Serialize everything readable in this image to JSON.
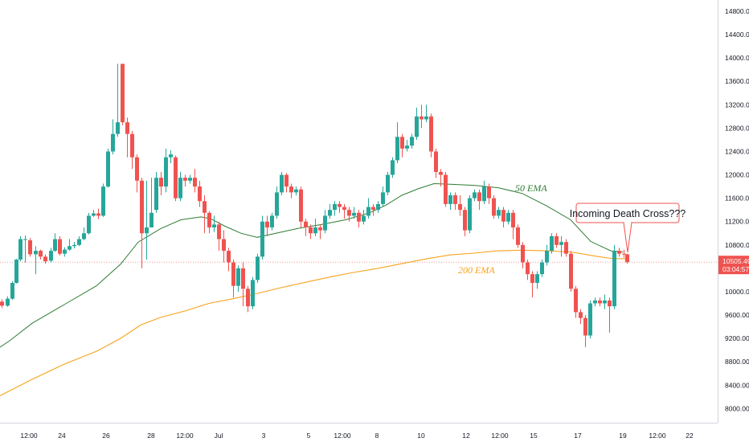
{
  "chart_data": {
    "type": "candlestick",
    "colors": {
      "up": "#26a69a",
      "down": "#ef5350",
      "ema50": "#2e7d32",
      "ema200": "#f7a21b",
      "price_line": "#ef5350",
      "callout_border": "#ef5350"
    },
    "y_axis": {
      "range": [
        7600,
        15000
      ],
      "ticks": [
        "14800.00",
        "14400.00",
        "14000.00",
        "13600.00",
        "13200.00",
        "12800.00",
        "12400.00",
        "12000.00",
        "11600.00",
        "11200.00",
        "10800.00",
        "10000.00",
        "9600.00",
        "9200.00",
        "8800.00",
        "8400.00",
        "8000.00"
      ]
    },
    "x_axis": {
      "ticks": [
        "12:00",
        "24",
        "26",
        "28",
        "12:00",
        "Jul",
        "3",
        "5",
        "12:00",
        "8",
        "10",
        "12",
        "12:00",
        "15",
        "17",
        "19",
        "12:00",
        "22"
      ]
    },
    "current_price": {
      "price": 10505.49,
      "label": "10505.49",
      "countdown": "03:04:57"
    },
    "annotations": {
      "ema50_label": "50 EMA",
      "ema200_label": "200 EMA",
      "callout": "Incoming Death Cross???"
    },
    "ema50": [
      [
        0,
        9050
      ],
      [
        12,
        9160
      ],
      [
        40,
        9460
      ],
      [
        80,
        9780
      ],
      [
        120,
        10100
      ],
      [
        150,
        10470
      ],
      [
        172,
        10850
      ],
      [
        200,
        11080
      ],
      [
        225,
        11230
      ],
      [
        250,
        11280
      ],
      [
        262,
        11250
      ],
      [
        280,
        11120
      ],
      [
        300,
        11000
      ],
      [
        320,
        10930
      ],
      [
        340,
        10990
      ],
      [
        370,
        11080
      ],
      [
        400,
        11150
      ],
      [
        430,
        11230
      ],
      [
        460,
        11350
      ],
      [
        480,
        11480
      ],
      [
        500,
        11650
      ],
      [
        520,
        11760
      ],
      [
        540,
        11850
      ],
      [
        560,
        11840
      ],
      [
        590,
        11820
      ],
      [
        620,
        11780
      ],
      [
        650,
        11680
      ],
      [
        680,
        11470
      ],
      [
        710,
        11230
      ],
      [
        735,
        10860
      ],
      [
        760,
        10700
      ],
      [
        775,
        10680
      ]
    ],
    "ema200": [
      [
        0,
        8220
      ],
      [
        40,
        8500
      ],
      [
        80,
        8760
      ],
      [
        120,
        8980
      ],
      [
        150,
        9200
      ],
      [
        175,
        9430
      ],
      [
        200,
        9560
      ],
      [
        230,
        9670
      ],
      [
        260,
        9800
      ],
      [
        290,
        9880
      ],
      [
        320,
        9970
      ],
      [
        350,
        10070
      ],
      [
        380,
        10160
      ],
      [
        410,
        10250
      ],
      [
        440,
        10330
      ],
      [
        470,
        10400
      ],
      [
        500,
        10480
      ],
      [
        530,
        10560
      ],
      [
        560,
        10630
      ],
      [
        590,
        10660
      ],
      [
        620,
        10700
      ],
      [
        650,
        10710
      ],
      [
        680,
        10700
      ],
      [
        710,
        10680
      ],
      [
        740,
        10610
      ],
      [
        760,
        10570
      ],
      [
        780,
        10560
      ]
    ],
    "candles": [
      [
        2,
        9830,
        9760,
        9870,
        9720
      ],
      [
        9,
        9760,
        9880,
        9920,
        9740
      ],
      [
        15,
        9880,
        10150,
        10180,
        9860
      ],
      [
        20,
        10150,
        10550,
        10560,
        10140
      ],
      [
        25,
        10550,
        10900,
        10950,
        10520
      ],
      [
        31,
        10900,
        10900,
        10960,
        10500
      ],
      [
        37,
        10880,
        10640,
        10920,
        10600
      ],
      [
        44,
        10640,
        10700,
        10780,
        10300
      ],
      [
        50,
        10700,
        10600,
        10720,
        10550
      ],
      [
        56,
        10600,
        10520,
        10640,
        10480
      ],
      [
        63,
        10530,
        10700,
        10750,
        10500
      ],
      [
        68,
        10700,
        10900,
        11000,
        10680
      ],
      [
        74,
        10900,
        10650,
        10950,
        10620
      ],
      [
        80,
        10650,
        10720,
        10760,
        10600
      ],
      [
        86,
        10720,
        10780,
        10900,
        10700
      ],
      [
        92,
        10780,
        10800,
        10850,
        10740
      ],
      [
        98,
        10800,
        10900,
        10950,
        10780
      ],
      [
        104,
        10900,
        11000,
        11100,
        10880
      ],
      [
        110,
        11000,
        11300,
        11350,
        10980
      ],
      [
        116,
        11300,
        11340,
        11400,
        11280
      ],
      [
        122,
        11340,
        11300,
        11420,
        11240
      ],
      [
        128,
        11300,
        11800,
        11850,
        11280
      ],
      [
        134,
        11800,
        12400,
        12450,
        11780
      ],
      [
        140,
        12400,
        12700,
        12950,
        12350
      ],
      [
        146,
        12700,
        12900,
        13900,
        12650
      ],
      [
        152,
        13900,
        12900,
        13900,
        12850
      ],
      [
        158,
        12900,
        12700,
        12980,
        12300
      ],
      [
        164,
        12700,
        12300,
        12750,
        12100
      ],
      [
        170,
        12300,
        11900,
        12350,
        11700
      ],
      [
        176,
        11900,
        11000,
        11950,
        10400
      ],
      [
        182,
        11000,
        11100,
        11900,
        10550
      ],
      [
        188,
        11100,
        11350,
        11950,
        11100
      ],
      [
        194,
        11400,
        11950,
        12050,
        11350
      ],
      [
        200,
        11950,
        11800,
        12050,
        11650
      ],
      [
        206,
        11800,
        12300,
        12450,
        11700
      ],
      [
        212,
        12300,
        12350,
        12420,
        12200
      ],
      [
        218,
        12300,
        11600,
        12330,
        11550
      ],
      [
        224,
        11600,
        11950,
        12050,
        11550
      ],
      [
        230,
        11950,
        11900,
        12000,
        11800
      ],
      [
        236,
        11900,
        11950,
        12000,
        11850
      ],
      [
        242,
        11950,
        11800,
        12100,
        11700
      ],
      [
        248,
        11800,
        11550,
        11900,
        11450
      ],
      [
        254,
        11550,
        11350,
        11650,
        11000
      ],
      [
        260,
        11350,
        11100,
        11380,
        11000
      ],
      [
        266,
        11100,
        11150,
        11300,
        11020
      ],
      [
        272,
        11150,
        10900,
        11200,
        10700
      ],
      [
        278,
        10900,
        10700,
        11050,
        10500
      ],
      [
        284,
        10700,
        10500,
        10750,
        10350
      ],
      [
        290,
        10500,
        10100,
        10550,
        9900
      ],
      [
        296,
        10100,
        10400,
        10450,
        10000
      ],
      [
        302,
        10400,
        10050,
        10500,
        9750
      ],
      [
        308,
        10050,
        9750,
        10100,
        9650
      ],
      [
        314,
        9750,
        10200,
        10250,
        9700
      ],
      [
        320,
        10200,
        10600,
        10650,
        10150
      ],
      [
        326,
        10600,
        11200,
        11300,
        10550
      ],
      [
        332,
        11200,
        11100,
        11300,
        10950
      ],
      [
        338,
        11100,
        11300,
        11350,
        11050
      ],
      [
        344,
        11300,
        11700,
        11800,
        11250
      ],
      [
        350,
        11700,
        12000,
        12050,
        11650
      ],
      [
        356,
        12000,
        11800,
        12030,
        11700
      ],
      [
        362,
        11800,
        11700,
        11850,
        11600
      ],
      [
        368,
        11700,
        11750,
        11800,
        11650
      ],
      [
        374,
        11750,
        11200,
        11800,
        11100
      ],
      [
        380,
        11200,
        11100,
        11250,
        10950
      ],
      [
        386,
        11100,
        11000,
        11150,
        10900
      ],
      [
        392,
        11000,
        11100,
        11250,
        10950
      ],
      [
        398,
        11100,
        11050,
        11150,
        10900
      ],
      [
        404,
        11050,
        11300,
        11400,
        11000
      ],
      [
        410,
        11300,
        11400,
        11500,
        11250
      ],
      [
        416,
        11400,
        11500,
        11550,
        11300
      ],
      [
        422,
        11500,
        11450,
        11550,
        11350
      ],
      [
        428,
        11450,
        11400,
        11500,
        11250
      ],
      [
        434,
        11400,
        11300,
        11450,
        11200
      ],
      [
        440,
        11300,
        11350,
        11450,
        11250
      ],
      [
        446,
        11350,
        11200,
        11400,
        11100
      ],
      [
        452,
        11200,
        11300,
        11400,
        11150
      ],
      [
        458,
        11300,
        11450,
        11600,
        11250
      ],
      [
        464,
        11450,
        11400,
        11500,
        11300
      ],
      [
        470,
        11400,
        11500,
        11550,
        11350
      ],
      [
        476,
        11500,
        11700,
        11800,
        11450
      ],
      [
        482,
        11700,
        12000,
        12050,
        11650
      ],
      [
        488,
        12000,
        12250,
        12300,
        11950
      ],
      [
        494,
        12250,
        12650,
        12900,
        12200
      ],
      [
        500,
        12650,
        12450,
        12700,
        12300
      ],
      [
        506,
        12450,
        12500,
        12600,
        12400
      ],
      [
        512,
        12500,
        12650,
        12700,
        12450
      ],
      [
        518,
        12650,
        13000,
        13150,
        12600
      ],
      [
        524,
        13000,
        12950,
        13200,
        12800
      ],
      [
        530,
        12950,
        13000,
        13200,
        12900
      ],
      [
        536,
        13000,
        12400,
        13050,
        12300
      ],
      [
        542,
        12400,
        12050,
        12450,
        11950
      ],
      [
        548,
        12050,
        12000,
        12100,
        11800
      ],
      [
        554,
        12000,
        11500,
        12050,
        11450
      ],
      [
        560,
        11500,
        11650,
        11700,
        11400
      ],
      [
        566,
        11650,
        11500,
        11700,
        11400
      ],
      [
        572,
        11500,
        11400,
        11650,
        11300
      ],
      [
        578,
        11400,
        11050,
        11450,
        10950
      ],
      [
        584,
        11050,
        11600,
        11650,
        11000
      ],
      [
        590,
        11600,
        11700,
        11750,
        11550
      ],
      [
        596,
        11700,
        11550,
        11750,
        11400
      ],
      [
        602,
        11550,
        11800,
        11900,
        11500
      ],
      [
        608,
        11800,
        11600,
        11850,
        11500
      ],
      [
        614,
        11600,
        11300,
        11650,
        11250
      ],
      [
        620,
        11300,
        11400,
        11450,
        11250
      ],
      [
        626,
        11400,
        11200,
        11450,
        11100
      ],
      [
        632,
        11200,
        11350,
        11400,
        11150
      ],
      [
        638,
        11350,
        11100,
        11400,
        10900
      ],
      [
        644,
        11100,
        10800,
        11150,
        10750
      ],
      [
        650,
        10800,
        10500,
        10850,
        10400
      ],
      [
        656,
        10500,
        10300,
        10550,
        10200
      ],
      [
        662,
        10300,
        10150,
        10350,
        9900
      ],
      [
        668,
        10150,
        10300,
        10350,
        10050
      ],
      [
        674,
        10300,
        10500,
        10550,
        10250
      ],
      [
        680,
        10500,
        10700,
        10800,
        10450
      ],
      [
        686,
        10700,
        10950,
        11000,
        10650
      ],
      [
        692,
        10950,
        10800,
        11000,
        10750
      ],
      [
        698,
        10800,
        10850,
        10950,
        10600
      ],
      [
        704,
        10850,
        10650,
        10900,
        10600
      ],
      [
        710,
        10650,
        10050,
        10700,
        10000
      ],
      [
        716,
        10050,
        9650,
        10100,
        9550
      ],
      [
        722,
        9650,
        9550,
        9700,
        9450
      ],
      [
        728,
        9550,
        9250,
        9600,
        9050
      ],
      [
        734,
        9250,
        9800,
        9850,
        9200
      ],
      [
        740,
        9800,
        9850,
        9900,
        9750
      ],
      [
        746,
        9850,
        9800,
        9900,
        9750
      ],
      [
        752,
        9800,
        9850,
        9950,
        9700
      ],
      [
        758,
        9850,
        9750,
        9900,
        9300
      ],
      [
        764,
        9750,
        10700,
        10800,
        9700
      ],
      [
        770,
        10700,
        10650,
        10750,
        10600
      ],
      [
        776,
        10650,
        10640,
        10720,
        10580
      ],
      [
        780,
        10640,
        10505,
        10650,
        10480
      ]
    ]
  }
}
